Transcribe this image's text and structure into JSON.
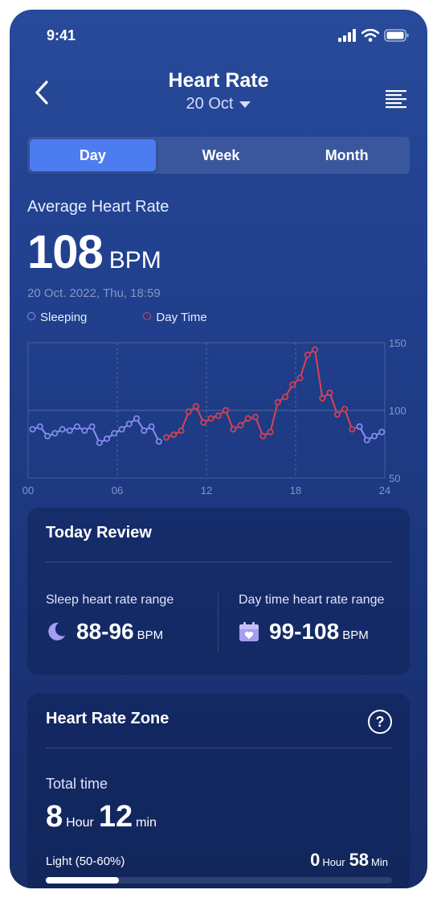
{
  "status": {
    "time": "9:41"
  },
  "header": {
    "title": "Heart Rate",
    "date": "20 Oct"
  },
  "tabs": [
    "Day",
    "Week",
    "Month"
  ],
  "active_tab": "Day",
  "average": {
    "label": "Average Heart Rate",
    "value": "108",
    "unit": "BPM",
    "timestamp": "20 Oct. 2022, Thu, 18:59"
  },
  "legend": {
    "sleeping": "Sleeping",
    "daytime": "Day Time"
  },
  "colors": {
    "sleeping": "#8a8ff0",
    "daytime": "#e0404f",
    "accent": "#4d7cf0"
  },
  "chart_data": {
    "type": "line",
    "x_ticks": [
      "00",
      "06",
      "12",
      "18",
      "24"
    ],
    "y_ticks": [
      "150",
      "100",
      "50"
    ],
    "xlim": [
      0,
      24
    ],
    "ylim": [
      50,
      150
    ],
    "series": [
      {
        "name": "Sleeping",
        "x": [
          0.3,
          0.8,
          1.3,
          1.8,
          2.3,
          2.8,
          3.3,
          3.8,
          4.3,
          4.8,
          5.3,
          5.8,
          6.3,
          6.8,
          7.3,
          7.8,
          8.3,
          8.8
        ],
        "y": [
          86,
          88,
          81,
          83,
          86,
          85,
          88,
          85,
          88,
          76,
          79,
          83,
          86,
          90,
          94,
          85,
          88,
          77
        ]
      },
      {
        "name": "Day Time",
        "x": [
          9.3,
          9.8,
          10.3,
          10.8,
          11.3,
          11.8,
          12.3,
          12.8,
          13.3,
          13.8,
          14.3,
          14.8,
          15.3,
          15.8,
          16.3,
          16.8,
          17.3,
          17.8,
          18.3,
          18.8,
          19.3,
          19.8,
          20.3,
          20.8,
          21.3,
          21.8,
          22.3
        ],
        "y": [
          80,
          82,
          85,
          99,
          103,
          91,
          94,
          96,
          100,
          86,
          89,
          94,
          95,
          81,
          84,
          106,
          110,
          119,
          124,
          141,
          145,
          109,
          113,
          97,
          101,
          86,
          88
        ]
      },
      {
        "name": "Sleeping (late)",
        "x": [
          22.3,
          22.8,
          23.3,
          23.8
        ],
        "y": [
          88,
          78,
          81,
          84
        ]
      }
    ]
  },
  "review": {
    "title": "Today Review",
    "sleep_label": "Sleep heart rate range",
    "sleep_value": "88-96",
    "sleep_unit": "BPM",
    "day_label": "Day time heart rate range",
    "day_value": "99-108",
    "day_unit": "BPM"
  },
  "zone": {
    "title": "Heart Rate Zone",
    "total_label": "Total time",
    "total_hours": "8",
    "hour_unit": "Hour",
    "total_minutes": "12",
    "min_unit": "min",
    "zones": [
      {
        "name": "Light (50-60%)",
        "hours": "0",
        "hour_unit": "Hour",
        "minutes": "58",
        "min_unit": "Min",
        "fraction": 0.21
      }
    ]
  }
}
